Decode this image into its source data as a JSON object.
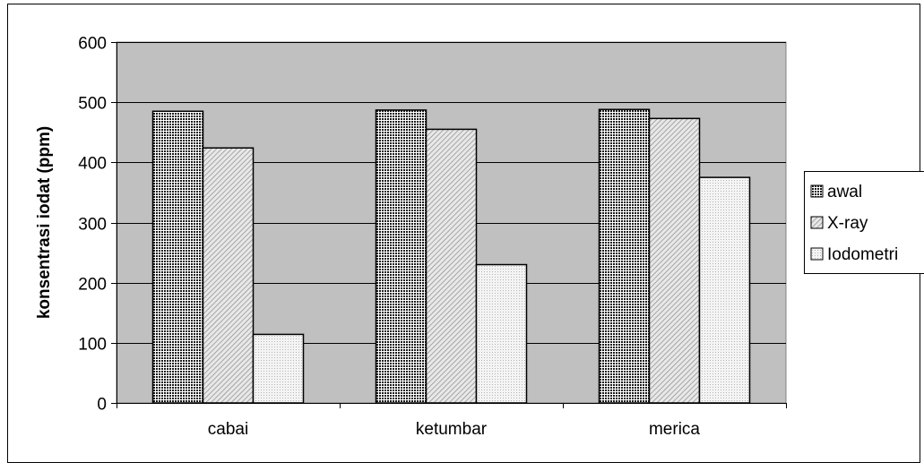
{
  "chart_data": {
    "type": "bar",
    "title": "",
    "xlabel": "",
    "ylabel": "konsentrasi  iodat  (ppm)",
    "categories": [
      "cabai",
      "ketumbar",
      "merica"
    ],
    "series": [
      {
        "name": "awal",
        "values": [
          485,
          487,
          488
        ]
      },
      {
        "name": "X-ray",
        "values": [
          424,
          455,
          473
        ]
      },
      {
        "name": "Iodometri",
        "values": [
          114,
          230,
          375
        ]
      }
    ],
    "ylim": [
      0,
      600
    ],
    "yticks": [
      0,
      100,
      200,
      300,
      400,
      500,
      600
    ],
    "grid": true,
    "legend_position": "right",
    "colors": {
      "plot_background": "#c0c0c0",
      "page_background": "#ffffff",
      "border": "#000000"
    },
    "patterns": [
      "dense-dots",
      "diagonal-lines",
      "light-dots"
    ]
  }
}
